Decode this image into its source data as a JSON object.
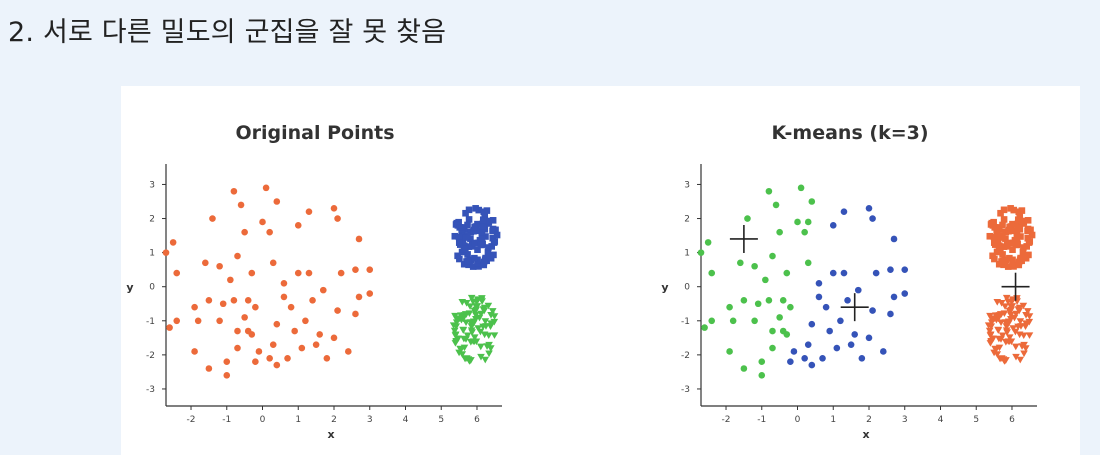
{
  "slide": {
    "title": "2. 서로 다른 밀도의 군집을 잘 못 찾음"
  },
  "colors": {
    "orange": "#ec6a3a",
    "blue": "#3553b8",
    "green": "#4cc14c",
    "axis": "#333333",
    "background": "#ecf3fb"
  },
  "chart_data": [
    {
      "type": "scatter",
      "title": "Original Points",
      "xlabel": "x",
      "ylabel": "y",
      "xlim": [
        -2.7,
        6.7
      ],
      "ylim": [
        -3.5,
        3.6
      ],
      "xticks": [
        -2,
        -1,
        0,
        1,
        2,
        3,
        4,
        5,
        6
      ],
      "yticks": [
        -3,
        -2,
        -1,
        0,
        1,
        2,
        3
      ],
      "grid": false,
      "legend": "none",
      "series": [
        {
          "color": "#ec6a3a",
          "marker": "circle",
          "points": [
            [
              0.1,
              2.9
            ],
            [
              -0.8,
              2.8
            ],
            [
              0.4,
              2.5
            ],
            [
              -0.6,
              2.4
            ],
            [
              1.3,
              2.2
            ],
            [
              -1.4,
              2.0
            ],
            [
              0.0,
              1.9
            ],
            [
              1.0,
              1.8
            ],
            [
              -0.5,
              1.6
            ],
            [
              0.2,
              1.6
            ],
            [
              2.0,
              2.3
            ],
            [
              2.1,
              2.0
            ],
            [
              2.7,
              1.4
            ],
            [
              -2.5,
              1.3
            ],
            [
              -2.7,
              1.0
            ],
            [
              -2.4,
              0.4
            ],
            [
              -1.6,
              0.7
            ],
            [
              -1.2,
              0.6
            ],
            [
              -0.7,
              0.9
            ],
            [
              0.3,
              0.7
            ],
            [
              -0.9,
              0.2
            ],
            [
              -0.3,
              0.4
            ],
            [
              1.0,
              0.4
            ],
            [
              0.6,
              0.1
            ],
            [
              1.3,
              0.4
            ],
            [
              2.2,
              0.4
            ],
            [
              2.6,
              0.5
            ],
            [
              3.0,
              0.5
            ],
            [
              -1.9,
              -0.6
            ],
            [
              -1.5,
              -0.4
            ],
            [
              -1.1,
              -0.5
            ],
            [
              -0.8,
              -0.4
            ],
            [
              -0.4,
              -0.4
            ],
            [
              -0.2,
              -0.6
            ],
            [
              0.6,
              -0.3
            ],
            [
              1.4,
              -0.4
            ],
            [
              2.7,
              -0.3
            ],
            [
              3.0,
              -0.2
            ],
            [
              1.7,
              -0.1
            ],
            [
              2.1,
              -0.7
            ],
            [
              2.6,
              -0.8
            ],
            [
              -2.4,
              -1.0
            ],
            [
              -1.8,
              -1.0
            ],
            [
              -1.2,
              -1.0
            ],
            [
              -2.6,
              -1.2
            ],
            [
              -0.7,
              -1.3
            ],
            [
              -0.3,
              -1.4
            ],
            [
              0.4,
              -1.1
            ],
            [
              0.9,
              -1.3
            ],
            [
              1.6,
              -1.4
            ],
            [
              2.0,
              -1.5
            ],
            [
              -1.9,
              -1.9
            ],
            [
              -0.7,
              -1.8
            ],
            [
              -0.1,
              -1.9
            ],
            [
              0.3,
              -1.7
            ],
            [
              1.1,
              -1.8
            ],
            [
              1.5,
              -1.7
            ],
            [
              2.4,
              -1.9
            ],
            [
              -1.0,
              -2.2
            ],
            [
              -0.2,
              -2.2
            ],
            [
              0.4,
              -2.3
            ],
            [
              -1.5,
              -2.4
            ],
            [
              0.7,
              -2.1
            ],
            [
              -1.0,
              -2.6
            ],
            [
              0.2,
              -2.1
            ],
            [
              1.8,
              -2.1
            ],
            [
              -0.4,
              -1.3
            ],
            [
              1.2,
              -1.0
            ],
            [
              0.8,
              -0.6
            ],
            [
              -0.5,
              -0.9
            ]
          ]
        },
        {
          "color": "#3553b8",
          "marker": "square",
          "cluster": {
            "center": [
              5.95,
              1.45
            ],
            "rx": 0.62,
            "ry": 0.95,
            "n": 95,
            "seed": 11
          }
        },
        {
          "color": "#4cc14c",
          "marker": "triangle-down",
          "cluster": {
            "center": [
              5.95,
              -1.25
            ],
            "rx": 0.62,
            "ry": 1.0,
            "n": 95,
            "seed": 23
          }
        }
      ]
    },
    {
      "type": "scatter",
      "title": "K-means (k=3)",
      "xlabel": "x",
      "ylabel": "y",
      "xlim": [
        -2.7,
        6.7
      ],
      "ylim": [
        -3.5,
        3.6
      ],
      "xticks": [
        -2,
        -1,
        0,
        1,
        2,
        3,
        4,
        5,
        6
      ],
      "yticks": [
        -3,
        -2,
        -1,
        0,
        1,
        2,
        3
      ],
      "grid": false,
      "legend": "none",
      "centroids": [
        [
          -1.5,
          1.4
        ],
        [
          1.6,
          -0.6
        ],
        [
          6.1,
          0.0
        ]
      ],
      "series": [
        {
          "color": "#4cc14c",
          "marker": "circle",
          "points": [
            [
              0.1,
              2.9
            ],
            [
              -0.8,
              2.8
            ],
            [
              0.4,
              2.5
            ],
            [
              -0.6,
              2.4
            ],
            [
              -1.4,
              2.0
            ],
            [
              0.0,
              1.9
            ],
            [
              -0.5,
              1.6
            ],
            [
              0.2,
              1.6
            ],
            [
              -2.5,
              1.3
            ],
            [
              -2.7,
              1.0
            ],
            [
              -2.4,
              0.4
            ],
            [
              -1.6,
              0.7
            ],
            [
              -1.2,
              0.6
            ],
            [
              -0.7,
              0.9
            ],
            [
              0.3,
              0.7
            ],
            [
              -0.9,
              0.2
            ],
            [
              -0.3,
              0.4
            ],
            [
              -1.9,
              -0.6
            ],
            [
              -1.5,
              -0.4
            ],
            [
              -1.1,
              -0.5
            ],
            [
              -0.8,
              -0.4
            ],
            [
              -0.4,
              -0.4
            ],
            [
              -0.2,
              -0.6
            ],
            [
              -2.4,
              -1.0
            ],
            [
              -1.8,
              -1.0
            ],
            [
              -1.2,
              -1.0
            ],
            [
              -2.6,
              -1.2
            ],
            [
              -0.7,
              -1.3
            ],
            [
              -0.3,
              -1.4
            ],
            [
              -1.9,
              -1.9
            ],
            [
              -0.7,
              -1.8
            ],
            [
              -1.0,
              -2.2
            ],
            [
              -1.5,
              -2.4
            ],
            [
              -1.0,
              -2.6
            ],
            [
              -0.4,
              -1.3
            ],
            [
              -0.5,
              -0.9
            ],
            [
              0.3,
              1.9
            ]
          ]
        },
        {
          "color": "#3553b8",
          "marker": "circle",
          "points": [
            [
              1.3,
              2.2
            ],
            [
              1.0,
              1.8
            ],
            [
              2.0,
              2.3
            ],
            [
              2.1,
              2.0
            ],
            [
              2.7,
              1.4
            ],
            [
              1.0,
              0.4
            ],
            [
              0.6,
              0.1
            ],
            [
              1.3,
              0.4
            ],
            [
              2.2,
              0.4
            ],
            [
              2.6,
              0.5
            ],
            [
              3.0,
              0.5
            ],
            [
              0.6,
              -0.3
            ],
            [
              1.4,
              -0.4
            ],
            [
              2.7,
              -0.3
            ],
            [
              3.0,
              -0.2
            ],
            [
              1.7,
              -0.1
            ],
            [
              2.1,
              -0.7
            ],
            [
              2.6,
              -0.8
            ],
            [
              0.4,
              -1.1
            ],
            [
              0.9,
              -1.3
            ],
            [
              1.6,
              -1.4
            ],
            [
              2.0,
              -1.5
            ],
            [
              -0.1,
              -1.9
            ],
            [
              0.3,
              -1.7
            ],
            [
              1.1,
              -1.8
            ],
            [
              1.5,
              -1.7
            ],
            [
              2.4,
              -1.9
            ],
            [
              -0.2,
              -2.2
            ],
            [
              0.4,
              -2.3
            ],
            [
              0.7,
              -2.1
            ],
            [
              0.2,
              -2.1
            ],
            [
              1.8,
              -2.1
            ],
            [
              1.2,
              -1.0
            ],
            [
              0.8,
              -0.6
            ]
          ]
        },
        {
          "color": "#ec6a3a",
          "marker": "square",
          "cluster": {
            "center": [
              5.95,
              1.45
            ],
            "rx": 0.62,
            "ry": 0.95,
            "n": 95,
            "seed": 11
          }
        },
        {
          "color": "#ec6a3a",
          "marker": "triangle-down",
          "cluster": {
            "center": [
              5.95,
              -1.25
            ],
            "rx": 0.62,
            "ry": 1.0,
            "n": 95,
            "seed": 23
          }
        }
      ]
    }
  ]
}
